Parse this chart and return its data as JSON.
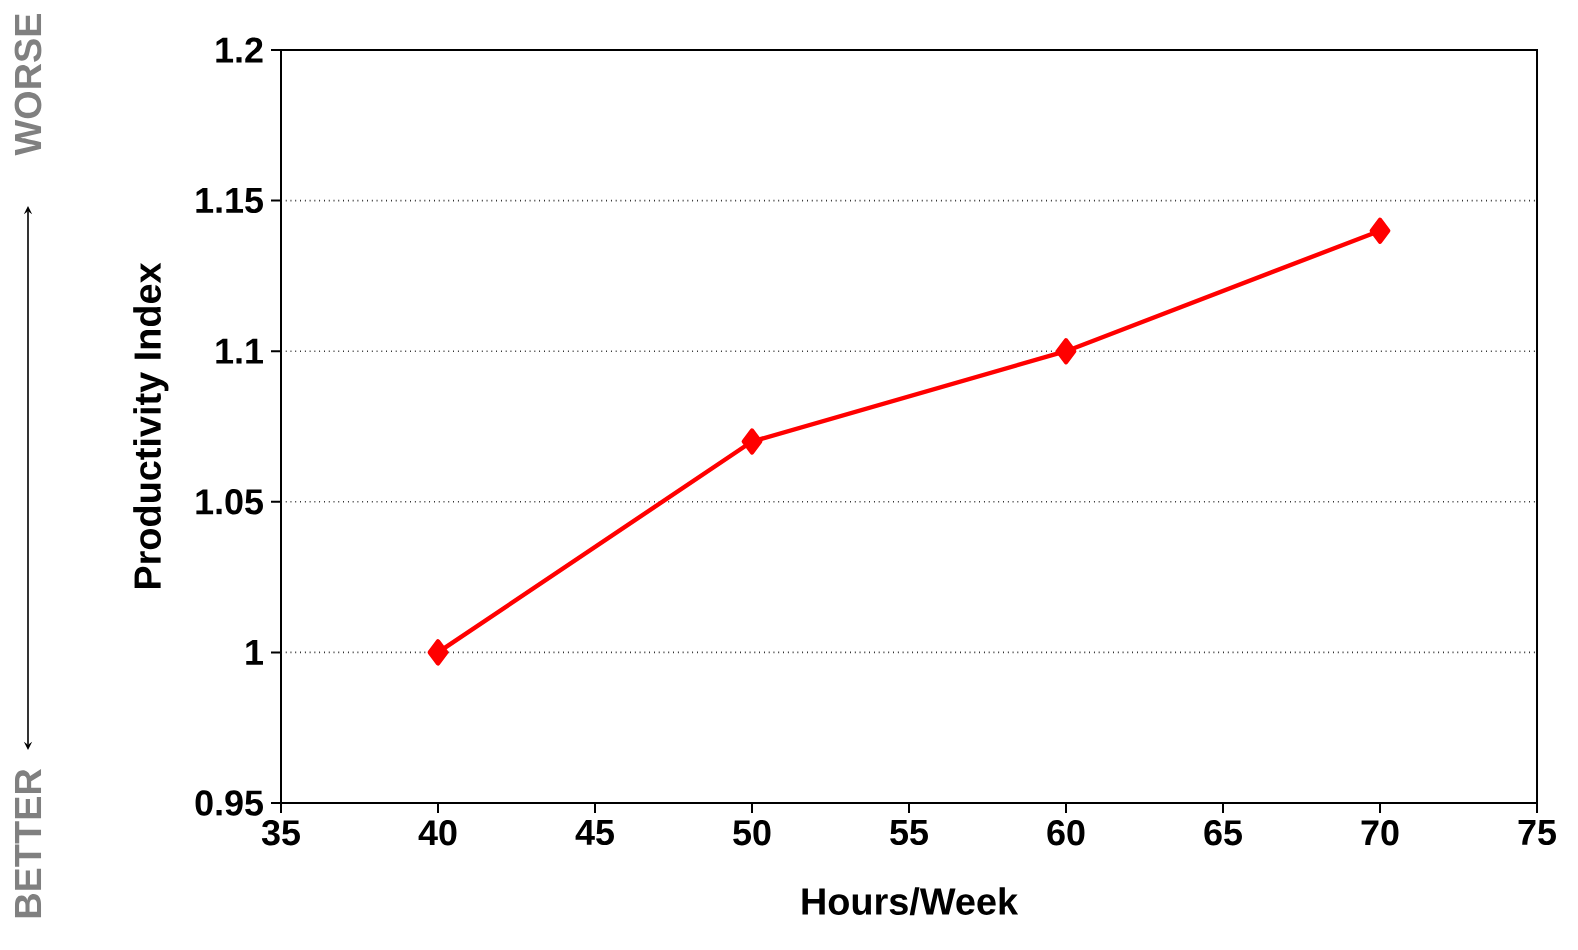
{
  "chart_data": {
    "type": "line",
    "xlabel": "Hours/Week",
    "ylabel": "Productivity Index",
    "x": [
      40,
      50,
      60,
      70
    ],
    "series": [
      {
        "color": "#ff0000",
        "values": [
          1,
          1.07,
          1.1,
          1.14
        ]
      }
    ],
    "xlim": [
      35,
      75
    ],
    "xticks": [
      35,
      40,
      45,
      50,
      55,
      60,
      65,
      70,
      75
    ],
    "ylim": [
      0.95,
      1.2
    ],
    "yticks": [
      0.95,
      1,
      1.05,
      1.1,
      1.15,
      1.2
    ],
    "grid": "y",
    "marker": "diamond",
    "line_style": "solid",
    "annotations": [
      "WORSE",
      "BETTER"
    ]
  }
}
